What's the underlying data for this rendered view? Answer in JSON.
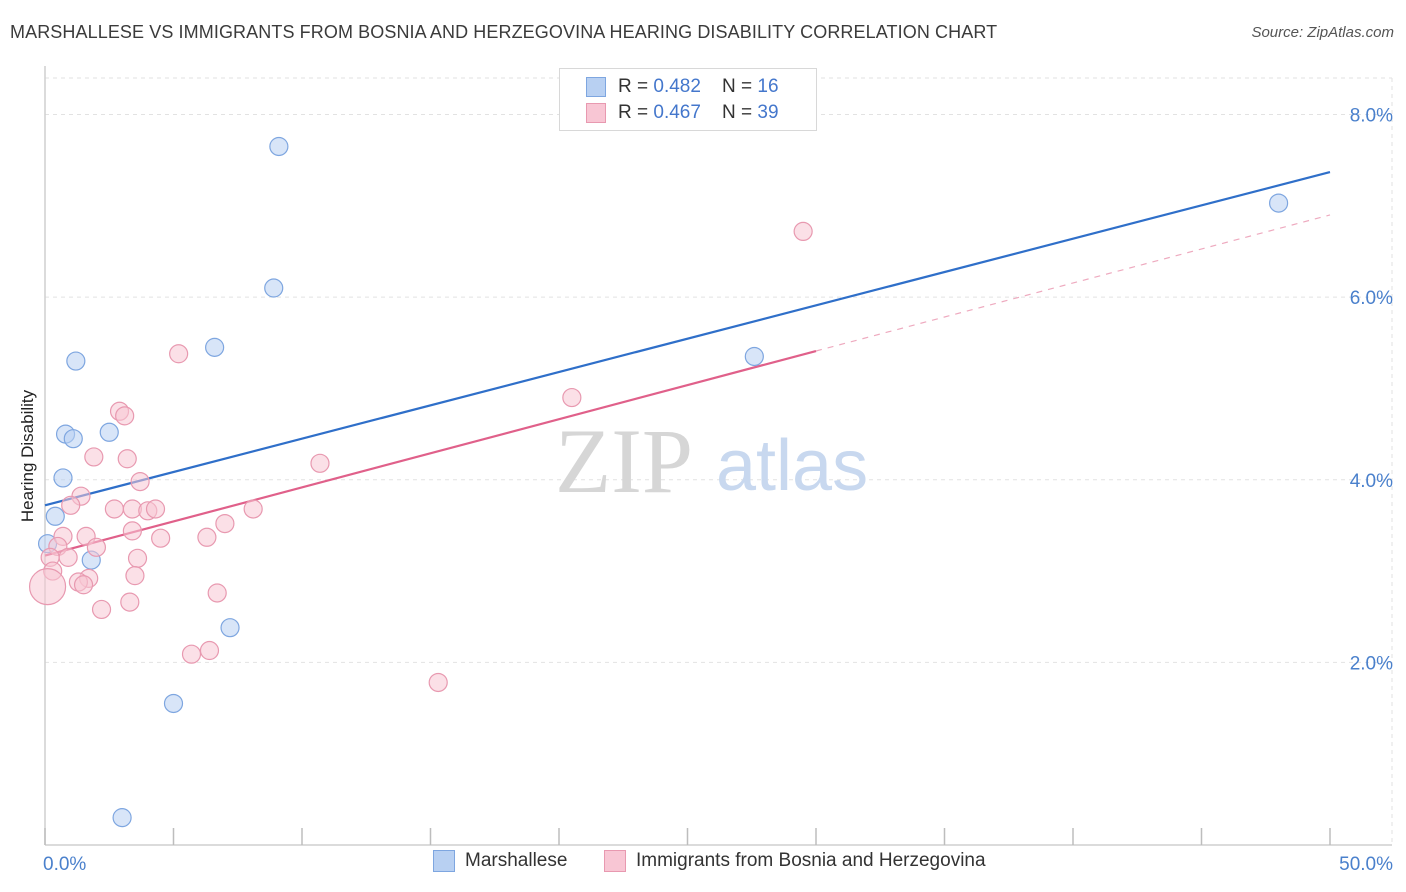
{
  "header": {
    "title": "MARSHALLESE VS IMMIGRANTS FROM BOSNIA AND HERZEGOVINA HEARING DISABILITY CORRELATION CHART",
    "source": "Source: ZipAtlas.com"
  },
  "legend": {
    "rows": [
      {
        "r_label": "R = ",
        "r_value": "0.482",
        "n_label": "N = ",
        "n_value": "16",
        "color": "#b8d0f2",
        "border": "#7ea6e0"
      },
      {
        "r_label": "R = ",
        "r_value": "0.467",
        "n_label": "N = ",
        "n_value": "39",
        "color": "#f8c6d4",
        "border": "#e899b0"
      }
    ]
  },
  "bottom_legend": {
    "series1": "Marshallese",
    "series2": "Immigrants from Bosnia and Herzegovina"
  },
  "watermark": {
    "zip": "ZIP",
    "atlas": "atlas"
  },
  "chart_data": {
    "type": "scatter",
    "title": "MARSHALLESE VS IMMIGRANTS FROM BOSNIA AND HERZEGOVINA HEARING DISABILITY CORRELATION CHART",
    "xlabel": "",
    "ylabel": "Hearing Disability",
    "xlim": [
      0,
      50
    ],
    "ylim": [
      0,
      8.4
    ],
    "x_tick_labels": [
      "0.0%",
      "50.0%"
    ],
    "y_ticks": [
      2,
      4,
      6,
      8
    ],
    "y_tick_labels": [
      "2.0%",
      "4.0%",
      "6.0%",
      "8.0%"
    ],
    "grid": true,
    "series": [
      {
        "name": "Marshallese",
        "color": "#7ea6e0",
        "fill": "#b8d0f2",
        "line_color": "#2f6fc9",
        "points": [
          [
            9.1,
            7.65
          ],
          [
            8.9,
            6.1
          ],
          [
            6.6,
            5.45
          ],
          [
            1.2,
            5.3
          ],
          [
            0.8,
            4.5
          ],
          [
            1.1,
            4.45
          ],
          [
            2.5,
            4.52
          ],
          [
            0.7,
            4.02
          ],
          [
            0.4,
            3.6
          ],
          [
            0.1,
            3.3
          ],
          [
            1.8,
            3.12
          ],
          [
            7.2,
            2.38
          ],
          [
            5.0,
            1.55
          ],
          [
            3.0,
            0.3
          ],
          [
            27.6,
            5.35
          ],
          [
            48.0,
            7.03
          ]
        ],
        "trend": {
          "x1": 0,
          "y1": 3.72,
          "x2": 50,
          "y2": 7.37
        }
      },
      {
        "name": "Immigrants from Bosnia and Herzegovina",
        "color": "#e899b0",
        "fill": "#f8c6d4",
        "line_color": "#e0608a",
        "points": [
          [
            5.2,
            5.38
          ],
          [
            2.9,
            4.75
          ],
          [
            3.1,
            4.7
          ],
          [
            1.9,
            4.25
          ],
          [
            3.2,
            4.23
          ],
          [
            10.7,
            4.18
          ],
          [
            3.7,
            3.98
          ],
          [
            1.4,
            3.82
          ],
          [
            1.0,
            3.72
          ],
          [
            2.7,
            3.68
          ],
          [
            3.4,
            3.68
          ],
          [
            4.0,
            3.66
          ],
          [
            4.3,
            3.68
          ],
          [
            8.1,
            3.68
          ],
          [
            7.0,
            3.52
          ],
          [
            3.4,
            3.44
          ],
          [
            0.7,
            3.38
          ],
          [
            1.6,
            3.38
          ],
          [
            4.5,
            3.36
          ],
          [
            6.3,
            3.37
          ],
          [
            0.5,
            3.27
          ],
          [
            2.0,
            3.26
          ],
          [
            0.2,
            3.15
          ],
          [
            0.9,
            3.15
          ],
          [
            3.6,
            3.14
          ],
          [
            0.3,
            3.0
          ],
          [
            3.5,
            2.95
          ],
          [
            1.7,
            2.92
          ],
          [
            1.3,
            2.88
          ],
          [
            1.5,
            2.85
          ],
          [
            0.1,
            2.83
          ],
          [
            6.7,
            2.76
          ],
          [
            3.3,
            2.66
          ],
          [
            2.2,
            2.58
          ],
          [
            6.4,
            2.13
          ],
          [
            5.7,
            2.09
          ],
          [
            15.3,
            1.78
          ],
          [
            20.5,
            4.9
          ],
          [
            29.5,
            6.72
          ]
        ],
        "trend": {
          "x1": 0,
          "y1": 3.17,
          "x2": 30,
          "y2": 5.41
        },
        "trend_dashed": {
          "x1": 30,
          "y1": 5.41,
          "x2": 50,
          "y2": 6.9
        }
      }
    ]
  }
}
